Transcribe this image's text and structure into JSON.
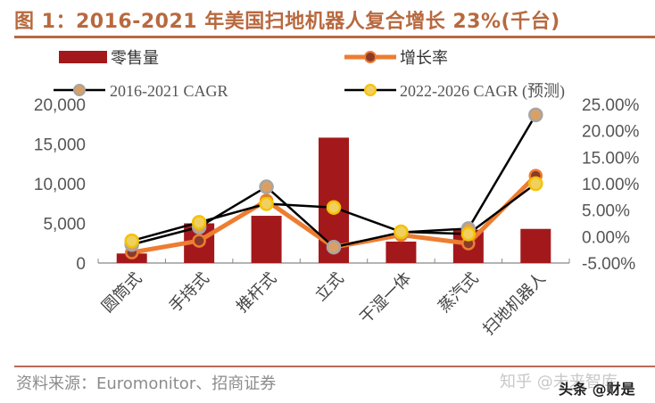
{
  "title": "图 1：2016-2021 年美国扫地机器人复合增长 23%(千台)",
  "source": "资料来源：Euromonitor、招商证券",
  "watermarks": [
    "知乎 @未来智库",
    "头条 @财是"
  ],
  "colors": {
    "title": "#b8693f",
    "bar": "#a3191b",
    "growth_line": "#ed7d31",
    "growth_marker": "#8b3a2a",
    "cagr_hist_marker": "#d9a066",
    "cagr_hist_marker_edge": "#a5a5a5",
    "cagr_fcst_marker": "#f0d060",
    "cagr_fcst_marker_edge": "#f5c200",
    "cagr_line": "#000000"
  },
  "chart_data": {
    "type": "bar+line",
    "title": "2016-2021 年美国扫地机器人复合增长 23%(千台)",
    "categories": [
      "圆筒式",
      "手持式",
      "推杆式",
      "立式",
      "干湿一体",
      "蒸汽式",
      "扫地机器人"
    ],
    "series": [
      {
        "name": "零售量",
        "type": "bar",
        "axis": "left",
        "values": [
          1200,
          5000,
          5950,
          15800,
          2700,
          4200,
          4300
        ]
      },
      {
        "name": "增长率",
        "type": "line",
        "axis": "right",
        "unit": "%",
        "values": [
          -3.0,
          -0.8,
          6.8,
          -2.0,
          0.3,
          -1.3,
          11.5
        ]
      },
      {
        "name": "2016-2021 CAGR",
        "type": "line",
        "axis": "right",
        "unit": "%",
        "values": [
          -1.5,
          1.8,
          9.4,
          -2.0,
          0.8,
          1.5,
          23.0
        ]
      },
      {
        "name": "2022-2026 CAGR (预测)",
        "type": "line",
        "axis": "right",
        "unit": "%",
        "values": [
          -0.8,
          2.7,
          6.2,
          5.5,
          0.9,
          0.5,
          10.0
        ]
      }
    ],
    "left_axis": {
      "ylim": [
        0,
        20000
      ],
      "ticks": [
        "0",
        "5,000",
        "10,000",
        "15,000",
        "20,000"
      ],
      "tick_values": [
        0,
        5000,
        10000,
        15000,
        20000
      ]
    },
    "right_axis": {
      "ylim": [
        -5,
        25
      ],
      "ticks": [
        "-5.00%",
        "0.00%",
        "5.00%",
        "10.00%",
        "15.00%",
        "20.00%",
        "25.00%"
      ],
      "tick_values": [
        -5,
        0,
        5,
        10,
        15,
        20,
        25
      ]
    },
    "legend": {
      "placement": "top",
      "items": [
        {
          "label": "零售量",
          "kind": "bar"
        },
        {
          "label": "增长率",
          "kind": "growth"
        },
        {
          "label": "2016-2021 CAGR",
          "kind": "hist"
        },
        {
          "label": "2022-2026 CAGR (预测)",
          "kind": "fcst"
        }
      ]
    },
    "grid": false,
    "xlabel": "",
    "ylabel": ""
  }
}
